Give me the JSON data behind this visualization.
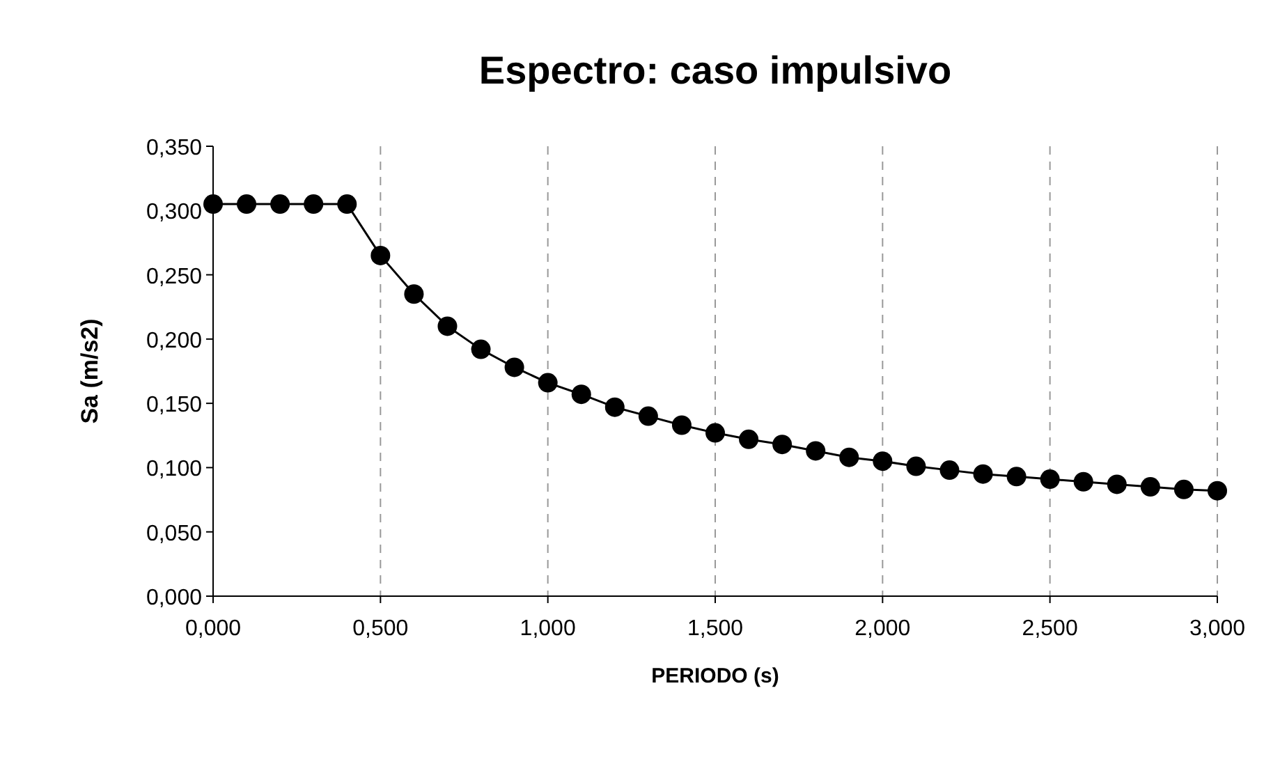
{
  "chart_data": {
    "type": "line",
    "title": "Espectro: caso impulsivo",
    "xlabel": "PERIODO (s)",
    "ylabel": "Sa (m/s2)",
    "x": [
      0,
      0.1,
      0.2,
      0.3,
      0.4,
      0.5,
      0.6,
      0.7,
      0.8,
      0.9,
      1.0,
      1.1,
      1.2,
      1.3,
      1.4,
      1.5,
      1.6,
      1.7,
      1.8,
      1.9,
      2.0,
      2.1,
      2.2,
      2.3,
      2.4,
      2.5,
      2.6,
      2.7,
      2.8,
      2.9,
      3.0
    ],
    "series": [
      {
        "color": "#000000",
        "values": [
          0.305,
          0.305,
          0.305,
          0.305,
          0.305,
          0.265,
          0.235,
          0.21,
          0.192,
          0.178,
          0.166,
          0.157,
          0.147,
          0.14,
          0.133,
          0.127,
          0.122,
          0.118,
          0.113,
          0.108,
          0.105,
          0.101,
          0.098,
          0.095,
          0.093,
          0.091,
          0.089,
          0.087,
          0.085,
          0.083,
          0.082
        ]
      }
    ],
    "xlim": [
      0,
      3
    ],
    "ylim": [
      0,
      0.35
    ],
    "xticks": [
      {
        "value": 0,
        "label": "0,000"
      },
      {
        "value": 0.5,
        "label": "0,500"
      },
      {
        "value": 1,
        "label": "1,000"
      },
      {
        "value": 1.5,
        "label": "1,500"
      },
      {
        "value": 2,
        "label": "2,000"
      },
      {
        "value": 2.5,
        "label": "2,500"
      },
      {
        "value": 3,
        "label": "3,000"
      }
    ],
    "yticks": [
      {
        "value": 0,
        "label": "0,000"
      },
      {
        "value": 0.05,
        "label": "0,050"
      },
      {
        "value": 0.1,
        "label": "0,100"
      },
      {
        "value": 0.15,
        "label": "0,150"
      },
      {
        "value": 0.2,
        "label": "0,200"
      },
      {
        "value": 0.25,
        "label": "0,250"
      },
      {
        "value": 0.3,
        "label": "0,300"
      },
      {
        "value": 0.35,
        "label": "0,350"
      }
    ],
    "grid": "x",
    "marker": "circle",
    "line_style": "solid"
  }
}
